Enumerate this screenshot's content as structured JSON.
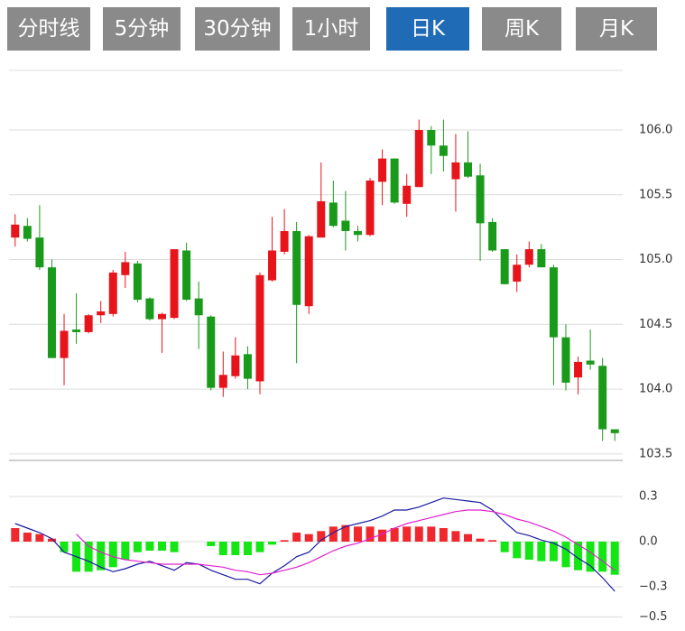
{
  "tabs": [
    "分时线",
    "5分钟",
    "30分钟",
    "1小时",
    "日K",
    "周K",
    "月K"
  ],
  "active_tab": 4,
  "chart_data": [
    {
      "type": "candlestick",
      "open": [
        105.17,
        105.26,
        105.17,
        104.94,
        104.24,
        104.46,
        104.44,
        104.57,
        104.58,
        104.88,
        104.97,
        104.7,
        104.54,
        104.55,
        105.07,
        104.7,
        104.56,
        104.01,
        104.1,
        104.27,
        104.06,
        104.84,
        105.06,
        105.22,
        104.64,
        105.17,
        105.44,
        105.3,
        105.22,
        105.19,
        105.6,
        105.78,
        105.43,
        105.56,
        106.0,
        105.88,
        105.62,
        105.75,
        105.65,
        105.29,
        105.08,
        104.83,
        104.96,
        105.08,
        104.94,
        104.4,
        104.09,
        104.22,
        104.18,
        103.69
      ],
      "high": [
        105.35,
        105.32,
        105.42,
        105.0,
        104.58,
        104.74,
        104.58,
        104.68,
        104.92,
        105.06,
        104.99,
        104.71,
        104.59,
        105.08,
        105.13,
        104.83,
        104.57,
        104.29,
        104.4,
        104.33,
        104.9,
        105.33,
        105.39,
        105.29,
        105.19,
        105.75,
        105.61,
        105.53,
        105.26,
        105.63,
        105.85,
        105.78,
        105.66,
        106.08,
        106.03,
        106.08,
        105.97,
        105.99,
        105.74,
        105.32,
        105.08,
        105.04,
        105.14,
        105.12,
        104.96,
        104.5,
        104.25,
        104.46,
        104.24,
        103.69
      ],
      "low": [
        105.1,
        105.14,
        104.92,
        104.24,
        104.03,
        104.35,
        104.43,
        104.51,
        104.56,
        104.78,
        104.67,
        104.53,
        104.28,
        104.54,
        104.68,
        104.31,
        103.99,
        103.94,
        104.08,
        104.0,
        103.96,
        104.83,
        105.04,
        104.2,
        104.58,
        105.17,
        105.25,
        105.07,
        105.14,
        105.18,
        105.42,
        105.43,
        105.33,
        105.56,
        105.66,
        105.68,
        105.37,
        105.63,
        104.99,
        105.06,
        104.81,
        104.75,
        104.94,
        104.94,
        104.03,
        103.99,
        103.96,
        104.15,
        103.6,
        103.6
      ],
      "close": [
        105.27,
        105.16,
        104.94,
        104.24,
        104.45,
        104.44,
        104.57,
        104.6,
        104.9,
        104.98,
        104.69,
        104.54,
        104.58,
        105.08,
        104.69,
        104.57,
        104.01,
        104.11,
        104.26,
        104.08,
        104.88,
        105.07,
        105.22,
        104.65,
        105.18,
        105.45,
        105.26,
        105.22,
        105.19,
        105.61,
        105.78,
        105.44,
        105.57,
        106.0,
        105.88,
        105.8,
        105.75,
        105.64,
        105.28,
        105.07,
        104.81,
        104.96,
        105.08,
        104.94,
        104.4,
        104.05,
        104.21,
        104.19,
        103.69,
        103.66
      ],
      "up_color": "#e8141b",
      "down_color": "#1a9a1a",
      "ylim": [
        103.45,
        106.46
      ],
      "yticks": [
        103.5,
        {
          "value": 104,
          "label": "104.0"
        },
        104.5,
        {
          "value": 105,
          "label": "105.0"
        },
        105.5,
        {
          "value": 106,
          "label": "106.0"
        }
      ],
      "grid": true
    },
    {
      "type": "macd",
      "series": [
        {
          "type": "bar",
          "positive_color": "#f0282d",
          "negative_color": "#14e614",
          "values": [
            0.09,
            0.06,
            0.05,
            0.02,
            -0.07,
            -0.2,
            -0.2,
            -0.19,
            -0.17,
            -0.12,
            -0.07,
            -0.06,
            -0.06,
            -0.07,
            0.0,
            0.0,
            -0.03,
            -0.09,
            -0.09,
            -0.09,
            -0.07,
            -0.02,
            0.01,
            0.06,
            0.05,
            0.07,
            0.1,
            0.11,
            0.1,
            0.1,
            0.08,
            0.09,
            0.1,
            0.1,
            0.1,
            0.09,
            0.07,
            0.05,
            0.02,
            0.01,
            -0.07,
            -0.11,
            -0.12,
            -0.13,
            -0.13,
            -0.17,
            -0.19,
            -0.2,
            -0.2,
            -0.22
          ]
        },
        {
          "type": "line",
          "color": "#1a1aa0",
          "values": [
            0.12,
            0.09,
            0.06,
            0.02,
            -0.07,
            -0.1,
            -0.13,
            -0.17,
            -0.2,
            -0.18,
            -0.15,
            -0.13,
            -0.16,
            -0.19,
            -0.14,
            -0.15,
            -0.19,
            -0.22,
            -0.25,
            -0.25,
            -0.28,
            -0.21,
            -0.16,
            -0.1,
            -0.07,
            0.01,
            0.06,
            0.1,
            0.12,
            0.14,
            0.17,
            0.21,
            0.21,
            0.23,
            0.26,
            0.29,
            0.28,
            0.27,
            0.26,
            0.21,
            0.13,
            0.06,
            0.04,
            0.01,
            -0.01,
            -0.05,
            -0.11,
            -0.16,
            -0.24,
            -0.33
          ]
        },
        {
          "type": "line",
          "color": "#e020d0",
          "values": [
            null,
            null,
            null,
            null,
            null,
            0.05,
            -0.03,
            -0.07,
            -0.1,
            -0.12,
            -0.13,
            -0.14,
            -0.15,
            -0.15,
            -0.15,
            -0.15,
            -0.16,
            -0.17,
            -0.19,
            -0.2,
            -0.22,
            -0.21,
            -0.19,
            -0.17,
            -0.14,
            -0.1,
            -0.06,
            -0.03,
            -0.01,
            0.02,
            0.05,
            0.09,
            0.12,
            0.14,
            0.16,
            0.18,
            0.2,
            0.21,
            0.21,
            0.2,
            0.18,
            0.15,
            0.13,
            0.1,
            0.07,
            0.03,
            -0.02,
            -0.07,
            -0.13,
            -0.19
          ]
        }
      ],
      "ylim": [
        -0.57,
        0.45
      ],
      "yticks": [
        {
          "value": -0.5,
          "label": "−0.5"
        },
        {
          "value": -0.3,
          "label": "−0.3"
        },
        {
          "value": 0,
          "label": "0.0"
        },
        0.3
      ],
      "grid": true
    }
  ]
}
